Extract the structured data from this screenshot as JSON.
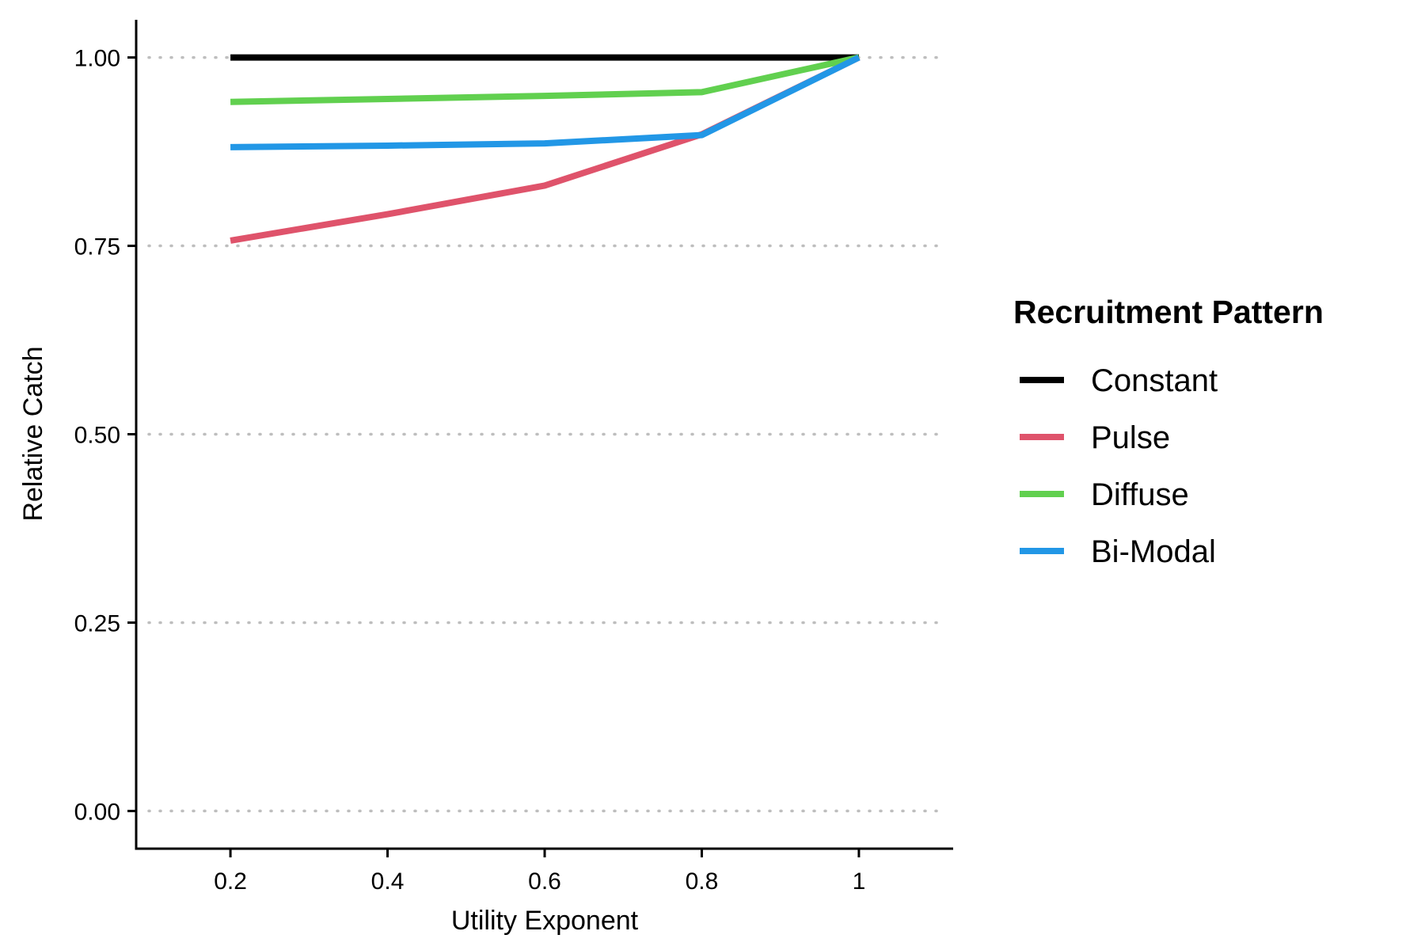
{
  "chart_data": {
    "type": "line",
    "xlabel": "Utility Exponent",
    "ylabel": "Relative Catch",
    "x": [
      0.2,
      0.4,
      0.6,
      0.8,
      1
    ],
    "x_ticks": [
      "0.2",
      "0.4",
      "0.6",
      "0.8",
      "1"
    ],
    "y_ticks": [
      "0.00",
      "0.25",
      "0.50",
      "0.75",
      "1.00"
    ],
    "xlim": [
      0.08,
      1.12
    ],
    "ylim": [
      -0.05,
      1.05
    ],
    "grid": "horizontal dotted",
    "legend": {
      "title": "Recruitment Pattern",
      "position": "right"
    },
    "series": [
      {
        "name": "Constant",
        "color": "#000000",
        "values": [
          1.0,
          1.0,
          1.0,
          1.0,
          1.0
        ]
      },
      {
        "name": "Pulse",
        "color": "#DF536B",
        "values": [
          0.757,
          0.792,
          0.83,
          0.898,
          1.0
        ]
      },
      {
        "name": "Diffuse",
        "color": "#61D04F",
        "values": [
          0.941,
          0.945,
          0.949,
          0.954,
          1.0
        ]
      },
      {
        "name": "Bi-Modal",
        "color": "#2297E6",
        "values": [
          0.881,
          0.883,
          0.886,
          0.897,
          1.0
        ]
      }
    ]
  }
}
